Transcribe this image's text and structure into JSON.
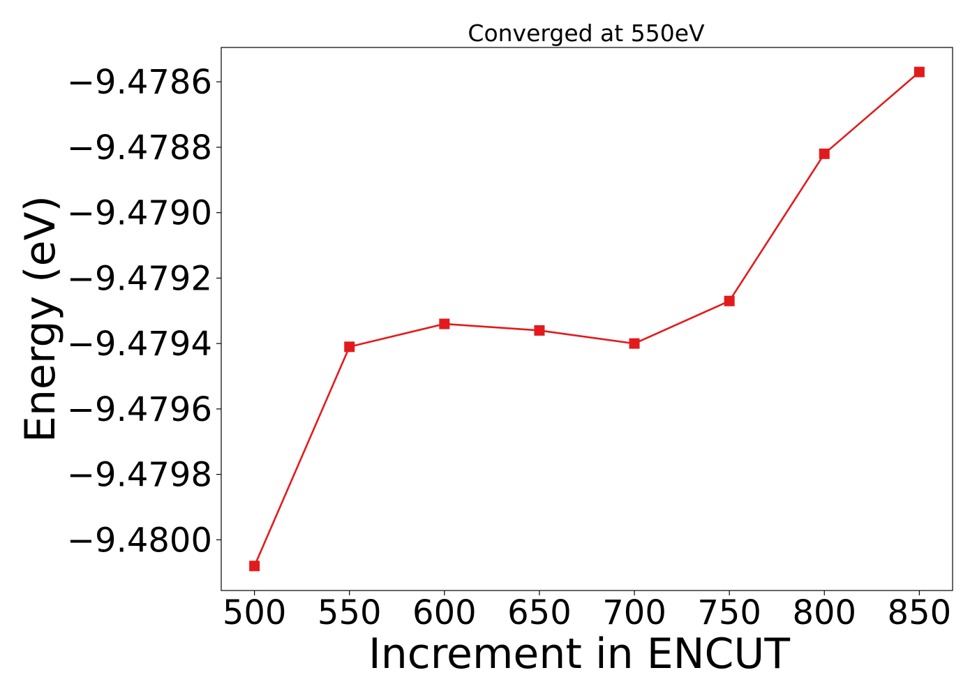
{
  "chart_data": {
    "type": "line",
    "title": "Converged at 550eV",
    "xlabel": "Increment in ENCUT",
    "ylabel": "Energy (eV)",
    "x": [
      500,
      550,
      600,
      650,
      700,
      750,
      800,
      850
    ],
    "series": [
      {
        "values": [
          -9.48008,
          -9.47941,
          -9.47934,
          -9.47936,
          -9.4794,
          -9.47927,
          -9.47882,
          -9.47857
        ],
        "color": "#e31a1c",
        "marker": "square"
      }
    ],
    "xticks": [
      500,
      550,
      600,
      650,
      700,
      750,
      800,
      850
    ],
    "xtick_labels": [
      "500",
      "550",
      "600",
      "650",
      "700",
      "750",
      "800",
      "850"
    ],
    "yticks": [
      -9.4786,
      -9.4788,
      -9.479,
      -9.4792,
      -9.4794,
      -9.4796,
      -9.4798,
      -9.48
    ],
    "ytick_labels": [
      "−9.4786",
      "−9.4788",
      "−9.4790",
      "−9.4792",
      "−9.4794",
      "−9.4796",
      "−9.4798",
      "−9.4800"
    ],
    "xlim": [
      482.5,
      867.5
    ],
    "ylim": [
      -9.480155,
      -9.478495
    ],
    "grid": false,
    "legend": "none"
  }
}
